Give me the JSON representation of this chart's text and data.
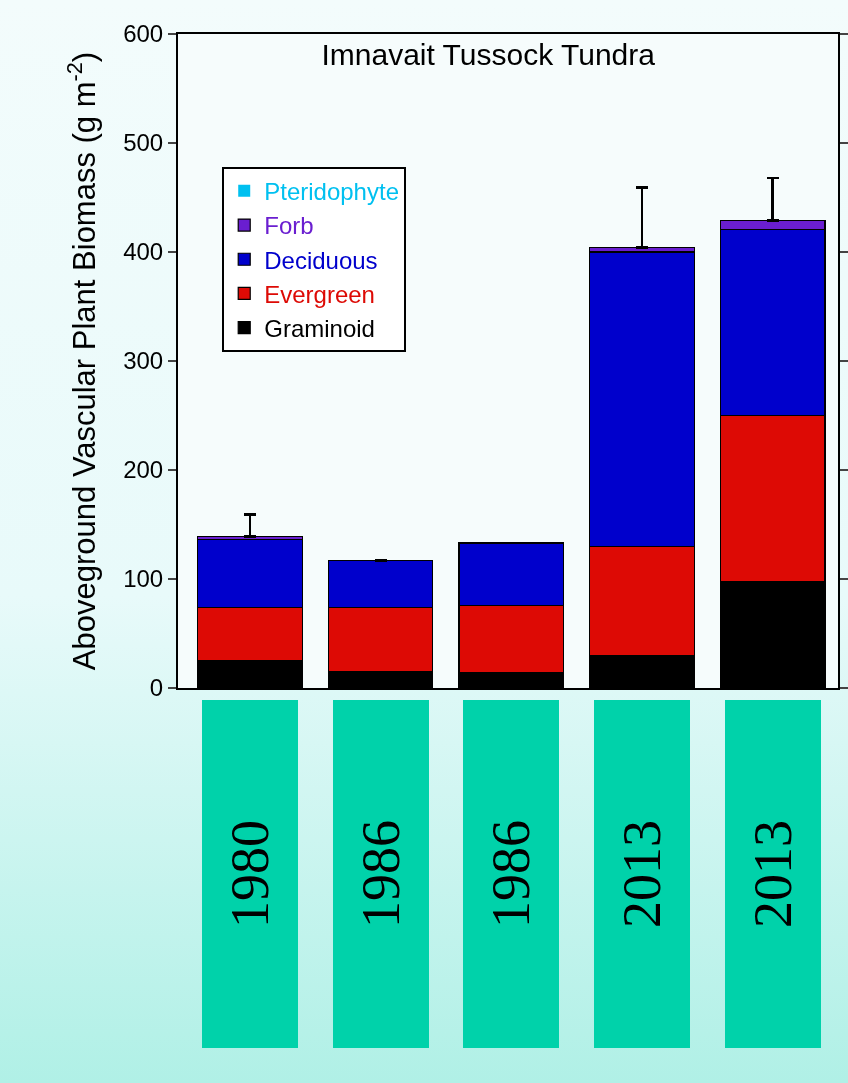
{
  "chart_data": {
    "type": "bar",
    "title": "Imnavait Tussock Tundra",
    "ylabel": "Aboveground Vascular Plant Biomass (g m$^{-2}$)",
    "categories": [
      "1980",
      "1986",
      "1986",
      "2013",
      "2013"
    ],
    "stacked": true,
    "ylim": [
      0,
      600
    ],
    "yticks": [
      0,
      100,
      200,
      300,
      400,
      500,
      600
    ],
    "grid": false,
    "legend": "top left",
    "series": [
      {
        "name": "Graminoid",
        "color": "#000000",
        "values": [
          25,
          15,
          14,
          30,
          98
        ]
      },
      {
        "name": "Evergreen",
        "color": "#dd0a05",
        "values": [
          49,
          59,
          62,
          100,
          152
        ]
      },
      {
        "name": "Deciduous",
        "color": "#0000cc",
        "values": [
          62,
          43,
          57,
          270,
          171
        ]
      },
      {
        "name": "Forb",
        "color": "#6a1ed0",
        "values": [
          3,
          0,
          0,
          4,
          8
        ],
        "errors": [
          20,
          null,
          null,
          55,
          39
        ]
      },
      {
        "name": "Pteridophyte",
        "color": "#00c0f0",
        "values": [
          0,
          0,
          0,
          0,
          0
        ]
      }
    ]
  }
}
